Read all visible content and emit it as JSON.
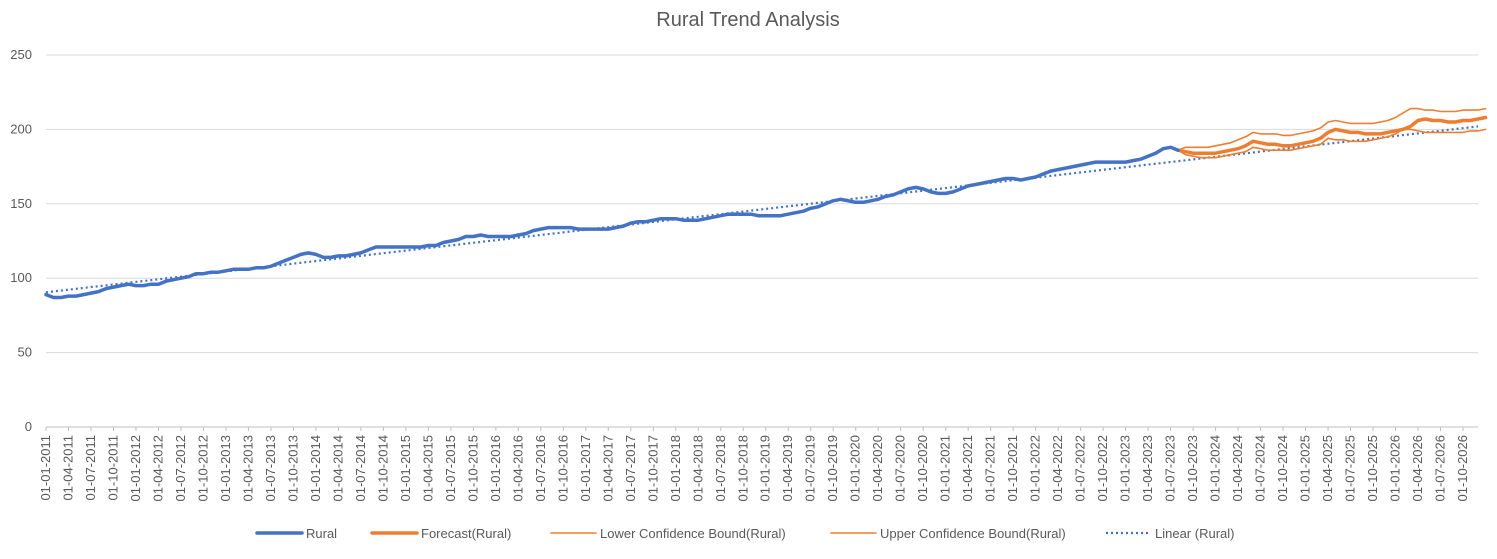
{
  "chart_data": {
    "type": "line",
    "title": "Rural Trend Analysis",
    "xlabel": "",
    "ylabel": "",
    "ylim": [
      0,
      250
    ],
    "yticks": [
      0,
      50,
      100,
      150,
      200,
      250
    ],
    "grid": true,
    "legend_position": "bottom",
    "x_tick_labels": [
      "01-01-2011",
      "01-04-2011",
      "01-07-2011",
      "01-10-2011",
      "01-01-2012",
      "01-04-2012",
      "01-07-2012",
      "01-10-2012",
      "01-01-2013",
      "01-04-2013",
      "01-07-2013",
      "01-10-2013",
      "01-01-2014",
      "01-04-2014",
      "01-07-2014",
      "01-10-2014",
      "01-01-2015",
      "01-04-2015",
      "01-07-2015",
      "01-10-2015",
      "01-01-2016",
      "01-04-2016",
      "01-07-2016",
      "01-10-2016",
      "01-01-2017",
      "01-04-2017",
      "01-07-2017",
      "01-10-2017",
      "01-01-2018",
      "01-04-2018",
      "01-07-2018",
      "01-10-2018",
      "01-01-2019",
      "01-04-2019",
      "01-07-2019",
      "01-10-2019",
      "01-01-2020",
      "01-04-2020",
      "01-07-2020",
      "01-10-2020",
      "01-01-2021",
      "01-04-2021",
      "01-07-2021",
      "01-10-2021",
      "01-01-2022",
      "01-04-2022",
      "01-07-2022",
      "01-10-2022",
      "01-01-2023",
      "01-04-2023",
      "01-07-2023",
      "01-10-2023",
      "01-01-2024",
      "01-04-2024",
      "01-07-2024",
      "01-10-2024",
      "01-01-2025",
      "01-04-2025",
      "01-07-2025",
      "01-10-2025",
      "01-01-2026",
      "01-04-2026",
      "01-07-2026",
      "01-10-2026"
    ],
    "series": [
      {
        "name": "Rural",
        "color": "#4472C4",
        "style": "thick",
        "x_start": "01-01-2011",
        "values": [
          89,
          87,
          87,
          88,
          88,
          89,
          90,
          91,
          93,
          94,
          95,
          96,
          95,
          95,
          96,
          96,
          98,
          99,
          100,
          101,
          103,
          103,
          104,
          104,
          105,
          106,
          106,
          106,
          107,
          107,
          108,
          110,
          112,
          114,
          116,
          117,
          116,
          114,
          114,
          115,
          115,
          116,
          117,
          119,
          121,
          121,
          121,
          121,
          121,
          121,
          121,
          122,
          122,
          124,
          125,
          126,
          128,
          128,
          129,
          128,
          128,
          128,
          128,
          129,
          130,
          132,
          133,
          134,
          134,
          134,
          134,
          133,
          133,
          133,
          133,
          133,
          134,
          135,
          137,
          138,
          138,
          139,
          140,
          140,
          140,
          139,
          139,
          139,
          140,
          141,
          142,
          143,
          143,
          143,
          143,
          142,
          142,
          142,
          142,
          143,
          144,
          145,
          147,
          148,
          150,
          152,
          153,
          152,
          151,
          151,
          152,
          153,
          155,
          156,
          158,
          160,
          161,
          160,
          158,
          157,
          157,
          158,
          160,
          162,
          163,
          164,
          165,
          166,
          167,
          167,
          166,
          167,
          168,
          170,
          172,
          173,
          174,
          175,
          176,
          177,
          178,
          178,
          178,
          178,
          178,
          179,
          180,
          182,
          184,
          187,
          188,
          186
        ]
      },
      {
        "name": "Forecast(Rural)",
        "color": "#ED7D31",
        "style": "thick",
        "x_start": "01-08-2023",
        "values": [
          186,
          185,
          184,
          184,
          184,
          184,
          185,
          186,
          187,
          189,
          192,
          191,
          190,
          190,
          189,
          189,
          190,
          191,
          192,
          194,
          198,
          200,
          199,
          198,
          198,
          197,
          197,
          197,
          198,
          199,
          200,
          202,
          206,
          207,
          206,
          206,
          205,
          205,
          206,
          206,
          207,
          208
        ]
      },
      {
        "name": "Lower Confidence Bound(Rural)",
        "color": "#ED7D31",
        "style": "thin",
        "x_start": "01-08-2023",
        "values": [
          186,
          183,
          182,
          181,
          181,
          181,
          182,
          183,
          184,
          185,
          188,
          187,
          186,
          186,
          186,
          186,
          187,
          188,
          189,
          190,
          194,
          193,
          193,
          192,
          192,
          192,
          193,
          194,
          195,
          197,
          200,
          200,
          199,
          198,
          198,
          198,
          198,
          198,
          198,
          199,
          199,
          200
        ]
      },
      {
        "name": "Upper Confidence Bound(Rural)",
        "color": "#ED7D31",
        "style": "thin",
        "x_start": "01-08-2023",
        "values": [
          186,
          188,
          188,
          188,
          188,
          189,
          190,
          191,
          193,
          195,
          198,
          197,
          197,
          197,
          196,
          196,
          197,
          198,
          199,
          201,
          205,
          206,
          205,
          204,
          204,
          204,
          204,
          205,
          206,
          208,
          211,
          214,
          214,
          213,
          213,
          212,
          212,
          212,
          213,
          213,
          213,
          214
        ]
      },
      {
        "name": "Linear (Rural)",
        "color": "#4472C4",
        "style": "dotted",
        "x_start": "01-01-2011",
        "x_end": "01-12-2026",
        "values": [
          90.5,
          202
        ]
      }
    ]
  },
  "legend": [
    "Rural",
    "Forecast(Rural)",
    "Lower Confidence Bound(Rural)",
    "Upper Confidence Bound(Rural)",
    "Linear (Rural)"
  ]
}
